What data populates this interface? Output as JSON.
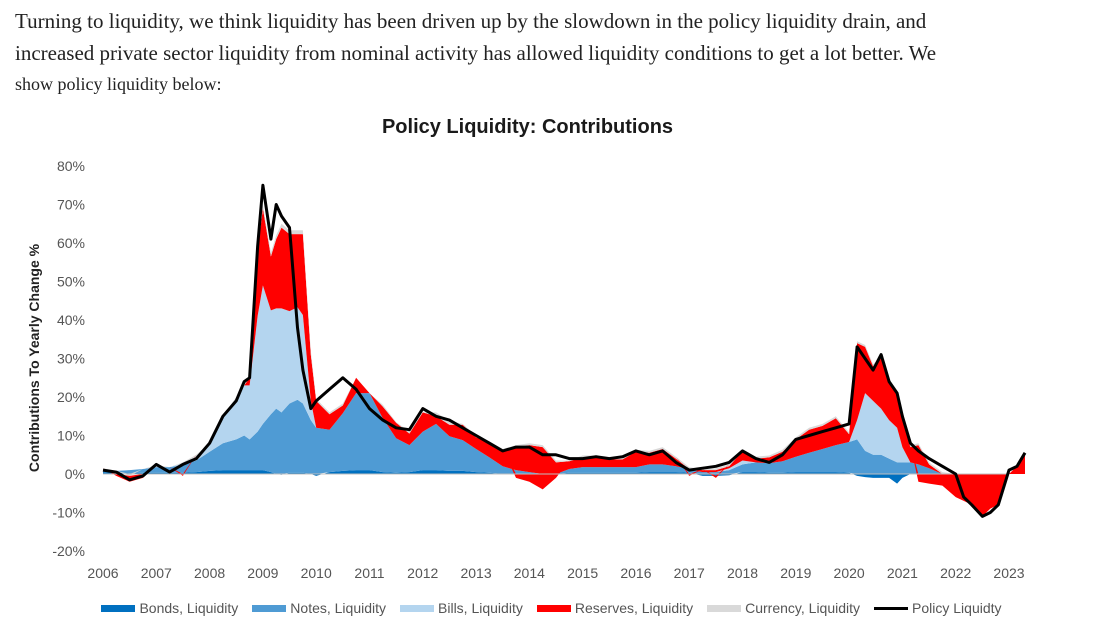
{
  "intro": {
    "line1": "Turning to liquidity, we think liquidity has been driven up by the slowdown in the policy liquidity drain, and",
    "line2": "increased private sector liquidity from nominal activity has allowed liquidity conditions to get a lot better. We",
    "line3": "show policy liquidity below:"
  },
  "chart_data": {
    "type": "area",
    "title": "Policy Liquidity: Contributions",
    "ylabel": "Contributions To Yearly Change %",
    "xlabel": "",
    "ylim": [
      -20,
      80
    ],
    "y_ticks": [
      "80%",
      "70%",
      "60%",
      "50%",
      "40%",
      "30%",
      "20%",
      "10%",
      "0%",
      "-10%",
      "-20%"
    ],
    "x_ticks": [
      "2006",
      "2007",
      "2008",
      "2009",
      "2010",
      "2011",
      "2012",
      "2013",
      "2014",
      "2015",
      "2016",
      "2017",
      "2018",
      "2019",
      "2020",
      "2021",
      "2022",
      "2023"
    ],
    "grid": false,
    "legend_position": "bottom",
    "colors": {
      "bonds": "#0070c0",
      "notes": "#4f9bd4",
      "bills": "#b4d5ef",
      "reserves": "#ff0000",
      "currency": "#d9d9d9",
      "policy": "#000000"
    },
    "legend": [
      {
        "key": "bonds",
        "label": "Bonds, Liquidity",
        "kind": "area"
      },
      {
        "key": "notes",
        "label": "Notes, Liquidity",
        "kind": "area"
      },
      {
        "key": "bills",
        "label": "Bills, Liquidity",
        "kind": "area"
      },
      {
        "key": "reserves",
        "label": "Reserves, Liquidity",
        "kind": "area"
      },
      {
        "key": "currency",
        "label": "Currency, Liquidity",
        "kind": "area"
      },
      {
        "key": "policy",
        "label": "Policy Liquidty",
        "kind": "line"
      }
    ],
    "x": [
      2006.0,
      2006.25,
      2006.5,
      2006.75,
      2007.0,
      2007.25,
      2007.5,
      2007.75,
      2008.0,
      2008.25,
      2008.5,
      2008.65,
      2008.75,
      2008.9,
      2009.0,
      2009.15,
      2009.25,
      2009.35,
      2009.5,
      2009.65,
      2009.75,
      2009.9,
      2010.0,
      2010.25,
      2010.5,
      2010.75,
      2011.0,
      2011.25,
      2011.5,
      2011.75,
      2012.0,
      2012.25,
      2012.5,
      2012.75,
      2013.0,
      2013.25,
      2013.5,
      2013.75,
      2014.0,
      2014.25,
      2014.5,
      2014.75,
      2015.0,
      2015.25,
      2015.5,
      2015.75,
      2016.0,
      2016.25,
      2016.5,
      2016.75,
      2017.0,
      2017.25,
      2017.5,
      2017.75,
      2018.0,
      2018.25,
      2018.5,
      2018.75,
      2019.0,
      2019.25,
      2019.5,
      2019.75,
      2020.0,
      2020.15,
      2020.3,
      2020.45,
      2020.6,
      2020.75,
      2020.9,
      2021.0,
      2021.15,
      2021.3,
      2021.5,
      2021.75,
      2022.0,
      2022.15,
      2022.3,
      2022.5,
      2022.65,
      2022.8,
      2023.0,
      2023.15,
      2023.3
    ],
    "series": [
      {
        "key": "bonds",
        "name": "Bonds, Liquidity",
        "values": [
          0.5,
          0.3,
          0.2,
          0.3,
          0.3,
          0.3,
          0.3,
          0.5,
          0.8,
          1.0,
          1.0,
          1.0,
          1.0,
          1.0,
          1.0,
          0.5,
          0.0,
          -0.2,
          0.3,
          0.3,
          0.3,
          0.0,
          -0.5,
          0.5,
          0.8,
          1.0,
          1.0,
          0.5,
          0.3,
          0.5,
          1.0,
          1.0,
          0.8,
          0.8,
          0.5,
          0.3,
          0.0,
          0.0,
          0.0,
          0.0,
          0.0,
          0.3,
          0.3,
          0.3,
          0.3,
          0.3,
          0.3,
          0.5,
          0.5,
          0.5,
          0.3,
          -0.5,
          -0.5,
          -0.3,
          0.5,
          0.5,
          0.3,
          0.3,
          0.5,
          0.5,
          0.5,
          0.5,
          0.3,
          -0.5,
          -0.8,
          -1.0,
          -1.0,
          -1.0,
          -2.5,
          -1.0,
          0.0,
          0.0,
          0.0,
          0.0,
          0.0,
          0.0,
          0.0,
          0.0,
          0.0,
          0.0,
          0.0,
          0.0,
          0.0
        ]
      },
      {
        "key": "notes",
        "name": "Notes, Liquidity",
        "values": [
          0.5,
          0.5,
          0.8,
          1.0,
          1.5,
          1.5,
          2.0,
          3.0,
          5.0,
          7.0,
          8.0,
          9.0,
          8.0,
          10.0,
          12.0,
          15.0,
          17.0,
          16.0,
          18.0,
          19.0,
          18.0,
          14.0,
          12.0,
          11.0,
          15.0,
          20.0,
          20.0,
          14.0,
          9.0,
          7.0,
          10.0,
          12.0,
          9.0,
          8.0,
          6.0,
          4.0,
          2.0,
          1.0,
          0.5,
          0.0,
          0.0,
          1.0,
          1.5,
          1.5,
          1.5,
          1.5,
          1.5,
          2.0,
          2.0,
          1.5,
          1.0,
          0.5,
          0.5,
          1.0,
          2.0,
          2.5,
          2.5,
          3.0,
          4.0,
          5.0,
          6.0,
          7.0,
          8.0,
          9.0,
          6.0,
          5.0,
          5.0,
          4.0,
          3.0,
          3.0,
          3.0,
          2.5,
          1.5,
          0.0,
          0.0,
          0.0,
          0.0,
          0.0,
          0.0,
          0.0,
          0.0,
          0.0,
          0.0
        ]
      },
      {
        "key": "bills",
        "name": "Bills, Liquidity",
        "values": [
          0.0,
          0.0,
          0.0,
          0.0,
          0.0,
          0.0,
          0.5,
          1.0,
          2.0,
          7.0,
          10.0,
          13.0,
          14.0,
          30.0,
          36.0,
          27.0,
          26.0,
          27.0,
          24.0,
          24.0,
          23.0,
          5.0,
          0.0,
          0.0,
          0.0,
          0.0,
          0.0,
          0.0,
          0.0,
          0.0,
          0.0,
          0.0,
          0.0,
          0.0,
          0.0,
          0.0,
          0.0,
          0.0,
          0.0,
          0.0,
          0.0,
          0.0,
          0.0,
          0.0,
          0.0,
          0.0,
          0.0,
          0.0,
          0.0,
          0.0,
          0.0,
          0.0,
          0.0,
          0.5,
          1.0,
          0.0,
          0.0,
          0.0,
          0.0,
          0.0,
          0.0,
          0.0,
          0.0,
          5.0,
          15.0,
          14.0,
          12.0,
          10.0,
          9.0,
          4.0,
          0.0,
          0.0,
          0.0,
          0.0,
          0.0,
          0.0,
          0.0,
          0.0,
          0.0,
          0.0,
          0.0,
          0.0,
          0.0
        ]
      },
      {
        "key": "reserves",
        "name": "Reserves, Liquidity",
        "values": [
          0.0,
          0.0,
          0.0,
          0.0,
          0.0,
          0.0,
          0.0,
          0.0,
          0.0,
          0.0,
          0.0,
          0.0,
          2.0,
          17.0,
          20.0,
          14.0,
          18.0,
          21.0,
          20.0,
          19.0,
          21.0,
          12.0,
          7.0,
          4.0,
          2.0,
          4.0,
          0.0,
          3.0,
          4.0,
          3.0,
          5.0,
          2.0,
          3.0,
          4.0,
          3.0,
          4.0,
          4.0,
          6.0,
          7.0,
          7.0,
          3.0,
          2.0,
          2.5,
          2.5,
          2.0,
          2.0,
          4.0,
          3.0,
          4.0,
          2.0,
          0.0,
          0.5,
          0.5,
          0.5,
          2.5,
          1.0,
          1.5,
          2.5,
          4.5,
          6.0,
          6.0,
          7.0,
          2.0,
          20.0,
          12.0,
          9.0,
          13.0,
          10.0,
          9.0,
          7.0,
          4.0,
          5.0,
          1.0,
          0.0,
          0.0,
          0.0,
          0.0,
          0.0,
          0.0,
          0.0,
          0.0,
          0.0,
          0.0
        ]
      },
      {
        "key": "currency",
        "name": "Currency, Liquidity",
        "values": [
          0.5,
          0.0,
          -0.5,
          0.0,
          0.5,
          0.0,
          0.2,
          0.5,
          0.2,
          0.0,
          1.0,
          1.0,
          0.0,
          1.0,
          1.0,
          1.0,
          1.0,
          1.0,
          1.0,
          1.0,
          1.0,
          1.0,
          0.5,
          0.5,
          0.5,
          0.0,
          0.0,
          0.5,
          0.2,
          0.5,
          0.0,
          1.0,
          1.0,
          0.2,
          0.5,
          0.2,
          0.5,
          0.5,
          0.5,
          0.5,
          0.5,
          0.2,
          0.5,
          0.5,
          0.5,
          0.5,
          0.5,
          0.5,
          0.5,
          0.5,
          0.5,
          0.2,
          0.5,
          0.5,
          0.5,
          0.5,
          0.5,
          0.5,
          0.5,
          0.5,
          0.5,
          0.5,
          0.5,
          0.5,
          0.5,
          0.5,
          0.5,
          0.5,
          0.5,
          0.5,
          0.5,
          0.5,
          0.5,
          0.5,
          0.0,
          0.0,
          0.0,
          0.0,
          0.0,
          0.0,
          0.0,
          0.0,
          0.0
        ]
      },
      {
        "key": "negative_area",
        "name": "",
        "values": [
          0.0,
          -0.5,
          -1.5,
          -1.0,
          0.0,
          0.0,
          -0.5,
          0.0,
          0.0,
          0.0,
          0.0,
          0.0,
          0.0,
          0.0,
          0.0,
          0.0,
          0.0,
          0.0,
          0.0,
          0.0,
          0.0,
          0.0,
          0.0,
          0.0,
          0.0,
          0.0,
          0.0,
          0.0,
          0.0,
          0.0,
          0.0,
          0.0,
          0.0,
          0.0,
          0.0,
          0.0,
          0.0,
          -1.0,
          -2.0,
          -4.0,
          -1.0,
          0.0,
          0.0,
          0.0,
          0.0,
          0.0,
          0.0,
          0.0,
          0.0,
          0.0,
          -0.5,
          0.0,
          -0.5,
          0.0,
          0.0,
          0.0,
          0.0,
          0.0,
          0.0,
          0.0,
          0.0,
          0.0,
          0.0,
          0.0,
          0.0,
          0.0,
          0.0,
          0.0,
          0.0,
          0.0,
          0.0,
          -2.0,
          -2.5,
          -3.0,
          -6.0,
          -7.0,
          -8.0,
          -11.0,
          -9.0,
          -8.0,
          0.0,
          2.0,
          5.0
        ]
      }
    ],
    "policy_line": [
      1.0,
      0.5,
      -1.5,
      -0.5,
      2.5,
      0.5,
      2.5,
      4.0,
      8.0,
      15.0,
      19.0,
      24.0,
      25.0,
      59.0,
      75.0,
      61.0,
      70.0,
      67.0,
      64.0,
      38.0,
      27.0,
      17.0,
      19.0,
      22.0,
      25.0,
      22.0,
      17.0,
      14.0,
      12.0,
      11.5,
      17.0,
      15.0,
      14.0,
      12.0,
      10.0,
      8.0,
      6.0,
      7.0,
      7.0,
      5.0,
      5.0,
      4.0,
      4.0,
      4.5,
      4.0,
      4.5,
      6.0,
      5.0,
      6.0,
      3.0,
      1.0,
      1.5,
      2.0,
      3.0,
      6.0,
      4.0,
      3.0,
      5.0,
      9.0,
      10.0,
      11.0,
      12.0,
      13.0,
      33.0,
      30.0,
      27.0,
      31.0,
      24.0,
      21.0,
      15.0,
      8.0,
      6.0,
      4.0,
      2.0,
      0.0,
      -6.0,
      -8.0,
      -11.0,
      -10.0,
      -8.0,
      1.0,
      2.0,
      5.5
    ]
  }
}
